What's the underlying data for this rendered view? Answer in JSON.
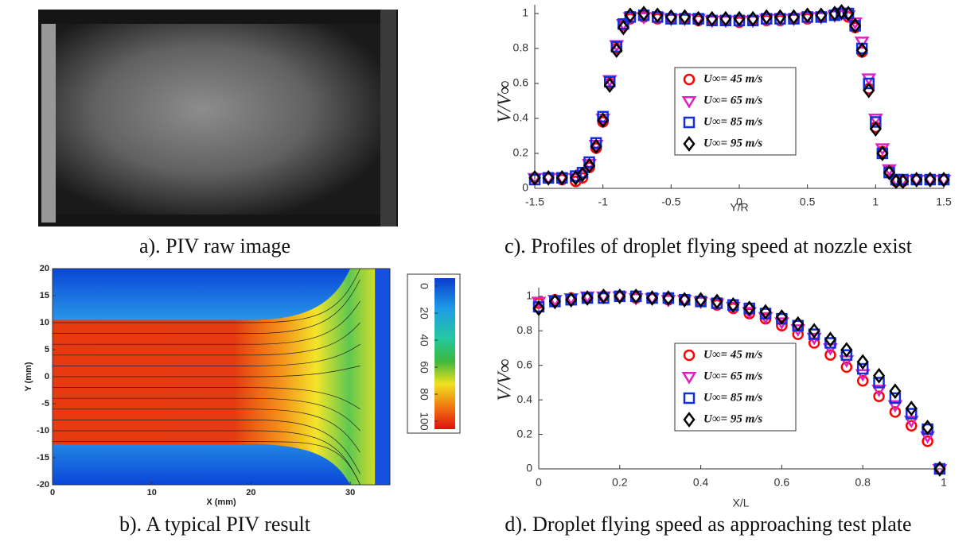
{
  "chart_data": [
    {
      "type": "image",
      "caption": "a). PIV raw image"
    },
    {
      "type": "scatter",
      "caption": "c). Profiles of droplet flying speed at nozzle exist",
      "xlabel": "Y/R",
      "ylabel": "V/V∞",
      "x": [
        -1.5,
        -1.4,
        -1.3,
        -1.2,
        -1.15,
        -1.1,
        -1.05,
        -1,
        -0.95,
        -0.9,
        -0.85,
        -0.8,
        -0.7,
        -0.6,
        -0.5,
        -0.4,
        -0.3,
        -0.2,
        -0.1,
        0,
        0.1,
        0.2,
        0.3,
        0.4,
        0.5,
        0.6,
        0.7,
        0.75,
        0.8,
        0.85,
        0.9,
        0.95,
        1,
        1.05,
        1.1,
        1.15,
        1.2,
        1.3,
        1.4,
        1.5
      ],
      "xlim": [
        -1.5,
        1.5
      ],
      "ylim": [
        0,
        1.05
      ],
      "xticks": [
        -1.5,
        -1,
        -0.5,
        0,
        0.5,
        1,
        1.5
      ],
      "yticks": [
        0,
        0.2,
        0.4,
        0.6,
        0.8,
        1
      ],
      "series": [
        {
          "name": "U∞= 45 m/s",
          "color": "#ff0000",
          "marker": "circle",
          "values": [
            0.06,
            0.06,
            0.05,
            0.04,
            0.06,
            0.12,
            0.23,
            0.38,
            0.6,
            0.8,
            0.93,
            0.97,
            0.98,
            0.97,
            0.97,
            0.97,
            0.96,
            0.96,
            0.96,
            0.95,
            0.96,
            0.96,
            0.96,
            0.97,
            0.97,
            0.98,
            0.99,
            1.0,
            0.98,
            0.92,
            0.78,
            0.57,
            0.35,
            0.21,
            0.1,
            0.04,
            0.04,
            0.05,
            0.05,
            0.05
          ]
        },
        {
          "name": "U∞= 65 m/s",
          "color": "#e020c0",
          "marker": "triangle",
          "values": [
            0.06,
            0.06,
            0.06,
            0.06,
            0.08,
            0.14,
            0.25,
            0.4,
            0.62,
            0.82,
            0.94,
            0.98,
            0.98,
            0.98,
            0.97,
            0.97,
            0.97,
            0.96,
            0.96,
            0.96,
            0.96,
            0.97,
            0.97,
            0.97,
            0.98,
            0.98,
            0.99,
            1.0,
            0.99,
            0.95,
            0.84,
            0.63,
            0.4,
            0.23,
            0.11,
            0.05,
            0.05,
            0.05,
            0.05,
            0.05
          ]
        },
        {
          "name": "U∞= 85 m/s",
          "color": "#1030e0",
          "marker": "square",
          "values": [
            0.05,
            0.06,
            0.06,
            0.07,
            0.09,
            0.15,
            0.26,
            0.41,
            0.61,
            0.81,
            0.94,
            0.98,
            0.99,
            0.98,
            0.97,
            0.97,
            0.97,
            0.96,
            0.96,
            0.96,
            0.96,
            0.97,
            0.97,
            0.97,
            0.98,
            0.98,
            0.99,
            1.0,
            1.0,
            0.93,
            0.8,
            0.6,
            0.38,
            0.2,
            0.09,
            0.05,
            0.05,
            0.05,
            0.05,
            0.05
          ]
        },
        {
          "name": "U∞= 95 m/s",
          "color": "#000000",
          "marker": "diamond",
          "values": [
            0.06,
            0.06,
            0.06,
            0.06,
            0.08,
            0.13,
            0.24,
            0.39,
            0.59,
            0.79,
            0.92,
            0.99,
            1.0,
            0.99,
            0.98,
            0.98,
            0.97,
            0.97,
            0.97,
            0.97,
            0.97,
            0.98,
            0.98,
            0.98,
            0.99,
            0.99,
            1.0,
            1.01,
            1.0,
            0.93,
            0.79,
            0.56,
            0.34,
            0.2,
            0.09,
            0.04,
            0.04,
            0.05,
            0.05,
            0.05
          ]
        }
      ]
    },
    {
      "type": "heatmap",
      "caption": "b). A typical PIV result",
      "xlabel": "X (mm)",
      "ylabel": "Y (mm)",
      "xlim": [
        0,
        34
      ],
      "ylim": [
        -20,
        20
      ],
      "xticks": [
        0,
        10,
        20,
        30
      ],
      "yticks": [
        -20,
        -15,
        -10,
        -5,
        0,
        5,
        10,
        15,
        20
      ],
      "clim": [
        0,
        100
      ],
      "cticks": [
        0,
        20,
        40,
        60,
        80,
        100
      ]
    },
    {
      "type": "scatter",
      "caption": "d). Droplet flying speed as approaching test plate",
      "xlabel": "X/L",
      "ylabel": "V/V∞",
      "x": [
        0,
        0.04,
        0.08,
        0.12,
        0.16,
        0.2,
        0.24,
        0.28,
        0.32,
        0.36,
        0.4,
        0.44,
        0.48,
        0.52,
        0.56,
        0.6,
        0.64,
        0.68,
        0.72,
        0.76,
        0.8,
        0.84,
        0.88,
        0.92,
        0.96,
        0.99
      ],
      "xlim": [
        0,
        1
      ],
      "ylim": [
        0,
        1.05
      ],
      "xticks": [
        0,
        0.2,
        0.4,
        0.6,
        0.8,
        1
      ],
      "yticks": [
        0,
        0.2,
        0.4,
        0.6,
        0.8,
        1
      ],
      "series": [
        {
          "name": "U∞= 45 m/s",
          "color": "#ff0000",
          "marker": "circle",
          "values": [
            0.96,
            0.98,
            0.99,
            0.99,
            1.0,
            1.0,
            0.99,
            0.99,
            0.98,
            0.98,
            0.97,
            0.95,
            0.93,
            0.9,
            0.87,
            0.83,
            0.78,
            0.73,
            0.66,
            0.59,
            0.51,
            0.42,
            0.33,
            0.25,
            0.16,
            0
          ]
        },
        {
          "name": "U∞= 65 m/s",
          "color": "#e020c0",
          "marker": "triangle",
          "values": [
            0.97,
            0.98,
            0.99,
            1.0,
            1.0,
            1.0,
            0.99,
            0.99,
            0.98,
            0.98,
            0.97,
            0.96,
            0.94,
            0.91,
            0.88,
            0.85,
            0.81,
            0.76,
            0.7,
            0.63,
            0.55,
            0.46,
            0.37,
            0.28,
            0.19,
            0
          ]
        },
        {
          "name": "U∞= 85 m/s",
          "color": "#1030e0",
          "marker": "square",
          "values": [
            0.94,
            0.97,
            0.98,
            0.99,
            0.99,
            1.0,
            1.0,
            0.99,
            0.99,
            0.98,
            0.97,
            0.96,
            0.95,
            0.93,
            0.9,
            0.87,
            0.83,
            0.78,
            0.73,
            0.66,
            0.58,
            0.5,
            0.41,
            0.32,
            0.23,
            0
          ]
        },
        {
          "name": "U∞= 95 m/s",
          "color": "#000000",
          "marker": "diamond",
          "values": [
            0.93,
            0.97,
            0.98,
            0.99,
            1.0,
            1.0,
            1.0,
            0.99,
            0.99,
            0.98,
            0.98,
            0.97,
            0.95,
            0.93,
            0.91,
            0.88,
            0.84,
            0.8,
            0.75,
            0.69,
            0.62,
            0.54,
            0.45,
            0.35,
            0.24,
            0
          ]
        }
      ]
    }
  ]
}
